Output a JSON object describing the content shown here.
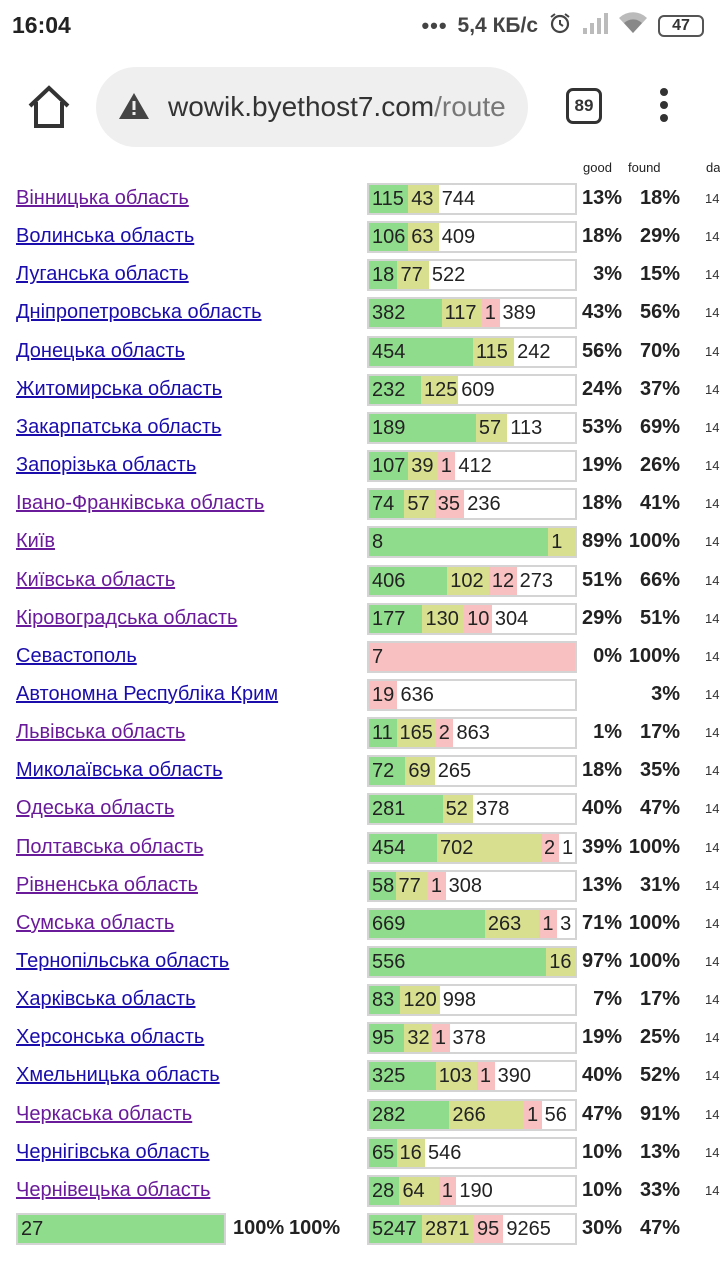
{
  "status": {
    "time": "16:04",
    "dots": "•••",
    "speed": "5,4 КБ/с",
    "battery": "47"
  },
  "browser": {
    "url_host": "wowik.byethost7.com",
    "url_path": "/route",
    "tab_count": "89"
  },
  "headers": {
    "good": "good",
    "found": "found",
    "date_clip": "da"
  },
  "regions": [
    {
      "name": "Вінницька область",
      "visited": true,
      "segs": [
        [
          "g",
          "115",
          40
        ],
        [
          "y",
          "43",
          31
        ],
        [
          "w",
          "744",
          139
        ]
      ],
      "good": "13%",
      "found": "18%",
      "date": "14"
    },
    {
      "name": "Волинська область",
      "visited": false,
      "segs": [
        [
          "g",
          "106",
          40
        ],
        [
          "y",
          "63",
          31
        ],
        [
          "w",
          "409",
          139
        ]
      ],
      "good": "18%",
      "found": "29%",
      "date": "14"
    },
    {
      "name": "Луганська область",
      "visited": false,
      "segs": [
        [
          "g",
          "18",
          29
        ],
        [
          "y",
          "77",
          32
        ],
        [
          "w",
          "522",
          149
        ]
      ],
      "good": "3%",
      "found": "15%",
      "date": "14"
    },
    {
      "name": "Дніпропетровська область",
      "visited": false,
      "segs": [
        [
          "g",
          "382",
          74
        ],
        [
          "y",
          "117",
          41
        ],
        [
          "p",
          "1",
          18
        ],
        [
          "w",
          "389",
          77
        ]
      ],
      "good": "43%",
      "found": "56%",
      "date": "14"
    },
    {
      "name": "Донецька область",
      "visited": false,
      "segs": [
        [
          "g",
          "454",
          106
        ],
        [
          "y",
          "115",
          42
        ],
        [
          "w",
          "242",
          62
        ]
      ],
      "good": "56%",
      "found": "70%",
      "date": "14"
    },
    {
      "name": "Житомирська область",
      "visited": false,
      "segs": [
        [
          "g",
          "232",
          53
        ],
        [
          "y",
          "125",
          38
        ],
        [
          "w",
          "609",
          119
        ]
      ],
      "good": "24%",
      "found": "37%",
      "date": "14"
    },
    {
      "name": "Закарпатська область",
      "visited": false,
      "segs": [
        [
          "g",
          "189",
          109
        ],
        [
          "y",
          "57",
          32
        ],
        [
          "w",
          "113",
          69
        ]
      ],
      "good": "53%",
      "found": "69%",
      "date": "14"
    },
    {
      "name": "Запорізька область",
      "visited": false,
      "segs": [
        [
          "g",
          "107",
          40
        ],
        [
          "y",
          "39",
          30
        ],
        [
          "p",
          "1",
          18
        ],
        [
          "w",
          "412",
          122
        ]
      ],
      "good": "19%",
      "found": "26%",
      "date": "14"
    },
    {
      "name": "Івано-Франківська область",
      "visited": true,
      "segs": [
        [
          "g",
          "74",
          36
        ],
        [
          "y",
          "57",
          31
        ],
        [
          "p",
          "35",
          30
        ],
        [
          "w",
          "236",
          113
        ]
      ],
      "good": "18%",
      "found": "41%",
      "date": "14"
    },
    {
      "name": "Київ",
      "visited": true,
      "segs": [
        [
          "g",
          "8",
          181
        ],
        [
          "y",
          "1",
          27
        ]
      ],
      "good": "89%",
      "found": "100%",
      "date": "14"
    },
    {
      "name": "Київська область",
      "visited": true,
      "segs": [
        [
          "g",
          "406",
          79
        ],
        [
          "y",
          "102",
          42
        ],
        [
          "p",
          "12",
          28
        ],
        [
          "w",
          "273",
          59
        ]
      ],
      "good": "51%",
      "found": "66%",
      "date": "14"
    },
    {
      "name": "Кіровоградська область",
      "visited": true,
      "segs": [
        [
          "g",
          "177",
          54
        ],
        [
          "y",
          "130",
          42
        ],
        [
          "p",
          "10",
          28
        ],
        [
          "w",
          "304",
          84
        ]
      ],
      "good": "29%",
      "found": "51%",
      "date": "14"
    },
    {
      "name": "Севастополь",
      "visited": false,
      "segs": [
        [
          "p",
          "7",
          208
        ]
      ],
      "good": "0%",
      "found": "100%",
      "date": "14"
    },
    {
      "name": "Автономна Республіка Крим",
      "visited": false,
      "segs": [
        [
          "p",
          "19",
          29
        ],
        [
          "w",
          "636",
          181
        ]
      ],
      "good": "",
      "found": "3%",
      "date": "14"
    },
    {
      "name": "Львівська область",
      "visited": true,
      "segs": [
        [
          "g",
          "11",
          28
        ],
        [
          "y",
          "165",
          40
        ],
        [
          "p",
          "2",
          18
        ],
        [
          "w",
          "863",
          124
        ]
      ],
      "good": "1%",
      "found": "17%",
      "date": "14"
    },
    {
      "name": "Миколаївська область",
      "visited": false,
      "segs": [
        [
          "g",
          "72",
          37
        ],
        [
          "y",
          "69",
          30
        ],
        [
          "w",
          "265",
          143
        ]
      ],
      "good": "18%",
      "found": "35%",
      "date": "14"
    },
    {
      "name": "Одеська область",
      "visited": true,
      "segs": [
        [
          "g",
          "281",
          75
        ],
        [
          "y",
          "52",
          31
        ],
        [
          "w",
          "378",
          104
        ]
      ],
      "good": "40%",
      "found": "47%",
      "date": "14"
    },
    {
      "name": "Полтавська область",
      "visited": true,
      "segs": [
        [
          "g",
          "454",
          68
        ],
        [
          "y",
          "702",
          104
        ],
        [
          "p",
          "2",
          18
        ],
        [
          "w",
          "1",
          16
        ]
      ],
      "good": "39%",
      "found": "100%",
      "date": "14"
    },
    {
      "name": "Рівненська область",
      "visited": true,
      "segs": [
        [
          "g",
          "58",
          27
        ],
        [
          "y",
          "77",
          33
        ],
        [
          "p",
          "1",
          18
        ],
        [
          "w",
          "308",
          132
        ]
      ],
      "good": "13%",
      "found": "31%",
      "date": "14"
    },
    {
      "name": "Сумська область",
      "visited": true,
      "segs": [
        [
          "g",
          "669",
          117
        ],
        [
          "y",
          "263",
          55
        ],
        [
          "p",
          "1",
          18
        ],
        [
          "w",
          "3",
          18
        ]
      ],
      "good": "71%",
      "found": "100%",
      "date": "14"
    },
    {
      "name": "Тернопільська область",
      "visited": false,
      "segs": [
        [
          "g",
          "556",
          179
        ],
        [
          "y",
          "16",
          29
        ]
      ],
      "good": "97%",
      "found": "100%",
      "date": "14"
    },
    {
      "name": "Харківська область",
      "visited": false,
      "segs": [
        [
          "g",
          "83",
          32
        ],
        [
          "y",
          "120",
          40
        ],
        [
          "w",
          "998",
          138
        ]
      ],
      "good": "7%",
      "found": "17%",
      "date": "14"
    },
    {
      "name": "Херсонська область",
      "visited": false,
      "segs": [
        [
          "g",
          "95",
          36
        ],
        [
          "y",
          "32",
          28
        ],
        [
          "p",
          "1",
          18
        ],
        [
          "w",
          "378",
          128
        ]
      ],
      "good": "19%",
      "found": "25%",
      "date": "14"
    },
    {
      "name": "Хмельницька область",
      "visited": false,
      "segs": [
        [
          "g",
          "325",
          68
        ],
        [
          "y",
          "103",
          42
        ],
        [
          "p",
          "1",
          18
        ],
        [
          "w",
          "390",
          82
        ]
      ],
      "good": "40%",
      "found": "52%",
      "date": "14"
    },
    {
      "name": "Черкаська область",
      "visited": true,
      "segs": [
        [
          "g",
          "282",
          82
        ],
        [
          "y",
          "266",
          76
        ],
        [
          "p",
          "1",
          18
        ],
        [
          "w",
          "56",
          34
        ]
      ],
      "good": "47%",
      "found": "91%",
      "date": "14"
    },
    {
      "name": "Чернігівська область",
      "visited": false,
      "segs": [
        [
          "g",
          "65",
          28
        ],
        [
          "y",
          "16",
          29
        ],
        [
          "w",
          "546",
          153
        ]
      ],
      "good": "10%",
      "found": "13%",
      "date": "14"
    },
    {
      "name": "Чернівецька область",
      "visited": true,
      "segs": [
        [
          "g",
          "28",
          31
        ],
        [
          "y",
          "64",
          40
        ],
        [
          "p",
          "1",
          18
        ],
        [
          "w",
          "190",
          121
        ]
      ],
      "good": "10%",
      "found": "33%",
      "date": "14"
    }
  ],
  "totals": {
    "count_bar": [
      [
        "g",
        "27",
        206
      ]
    ],
    "count_good": "100%",
    "count_found": "100%",
    "segs": [
      [
        "g",
        "5247",
        54
      ],
      [
        "y",
        "2871",
        53
      ],
      [
        "p",
        "95",
        30
      ],
      [
        "w",
        "9265",
        73
      ]
    ],
    "good": "30%",
    "found": "47%"
  }
}
